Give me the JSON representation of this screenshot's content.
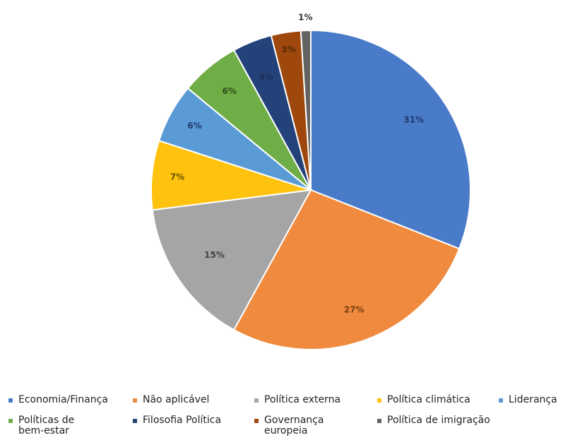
{
  "chart_data": {
    "type": "pie",
    "categories": [
      "Economia/Finança",
      "Não aplicável",
      "Política externa",
      "Política climática",
      "Liderança",
      "Políticas de bem-estar",
      "Filosofia Política",
      "Governança europeia",
      "Política de imigração"
    ],
    "values": [
      31,
      27,
      15,
      7,
      6,
      6,
      4,
      3,
      1
    ],
    "labels": [
      "31%",
      "27%",
      "15%",
      "7%",
      "6%",
      "6%",
      "4%",
      "3%",
      "1%"
    ],
    "colors": [
      "#4a7bc8",
      "#ef8a3e",
      "#a5a5a5",
      "#fec20f",
      "#5b9bd5",
      "#6fad47",
      "#24427a",
      "#9e480e",
      "#636363"
    ],
    "label_colors": [
      "#1f3a6e",
      "#7a3d12",
      "#404040",
      "#6a5200",
      "#1f3a6e",
      "#2c4d1a",
      "#1a2d55",
      "#5a2a08",
      "#333333"
    ],
    "start_angle_deg": 0,
    "direction": "clockwise",
    "title": "",
    "legend_position": "bottom"
  },
  "legend": {
    "items": [
      {
        "label": "Economia/Finança"
      },
      {
        "label": "Não aplicável"
      },
      {
        "label": "Política externa"
      },
      {
        "label": "Política climática"
      },
      {
        "label": "Liderança"
      },
      {
        "label": "Políticas de\nbem-estar"
      },
      {
        "label": "Filosofia Política"
      },
      {
        "label": "Governança\neuropeia"
      },
      {
        "label": "Política de imigração"
      }
    ]
  }
}
